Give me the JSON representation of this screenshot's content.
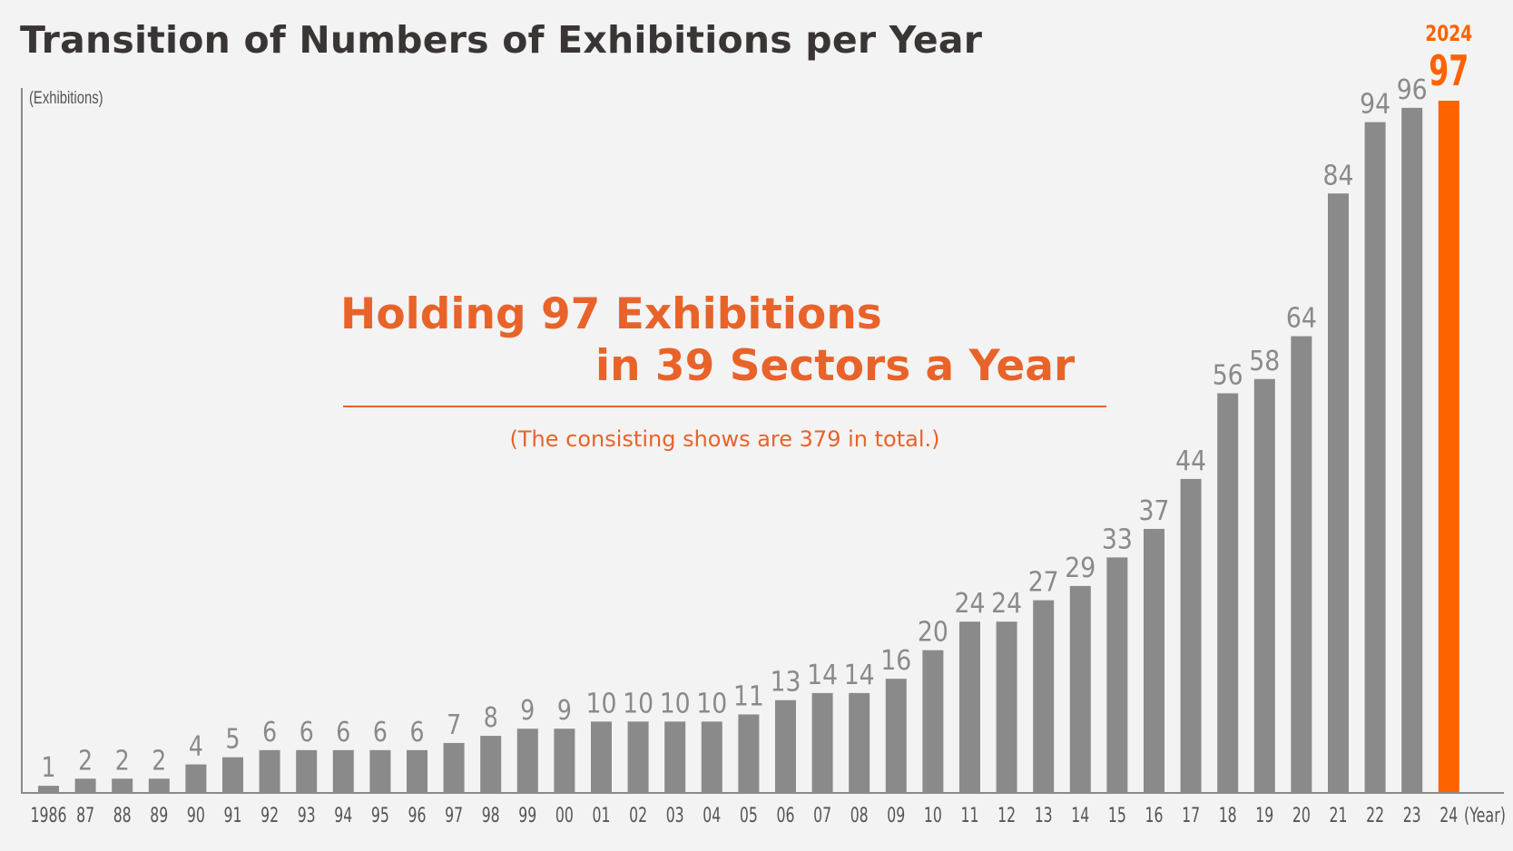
{
  "title": "Transition of Numbers of Exhibitions per Year",
  "unit_label": "(Exhibitions)",
  "headline": {
    "line1": "Holding 97 Exhibitions",
    "line2": "in 39 Sectors a Year"
  },
  "subtitle": "(The consisting shows are 379 in total.)",
  "highlight": {
    "year_label": "2024",
    "value_label": "97"
  },
  "colors": {
    "bar": "#8a8a8a",
    "highlight": "#ff6200",
    "accent_text": "#e8632a",
    "axis": "#8a8a8a",
    "background": "#f3f3f3"
  },
  "chart_data": {
    "type": "bar",
    "title": "Transition of Numbers of Exhibitions per Year",
    "xlabel": "(Year)",
    "ylabel": "(Exhibitions)",
    "categories": [
      "1986",
      "87",
      "88",
      "89",
      "90",
      "91",
      "92",
      "93",
      "94",
      "95",
      "96",
      "97",
      "98",
      "99",
      "00",
      "01",
      "02",
      "03",
      "04",
      "05",
      "06",
      "07",
      "08",
      "09",
      "10",
      "11",
      "12",
      "13",
      "14",
      "15",
      "16",
      "17",
      "18",
      "19",
      "20",
      "21",
      "22",
      "23",
      "24"
    ],
    "values": [
      1,
      2,
      2,
      2,
      4,
      5,
      6,
      6,
      6,
      6,
      6,
      7,
      8,
      9,
      9,
      10,
      10,
      10,
      10,
      11,
      13,
      14,
      14,
      16,
      20,
      24,
      24,
      27,
      29,
      33,
      37,
      44,
      56,
      58,
      64,
      84,
      94,
      96,
      97
    ],
    "highlighted_index": 38,
    "ylim": [
      0,
      97
    ],
    "grid": false,
    "legend": "none"
  }
}
